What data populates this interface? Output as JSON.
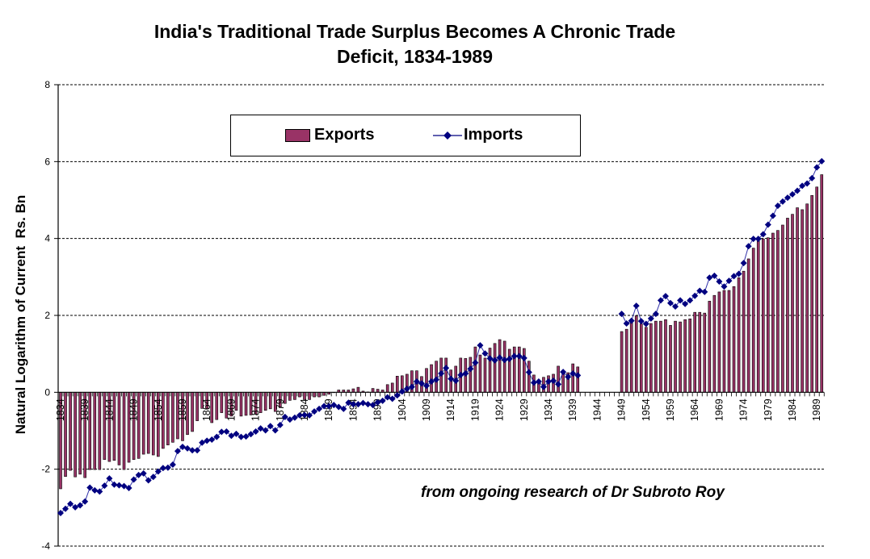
{
  "chart_data": {
    "type": "bar+line",
    "title": "India's Traditional Trade Surplus Becomes A Chronic Trade Deficit, 1834-1989",
    "title_lines": [
      "India's Traditional Trade Surplus Becomes A Chronic Trade",
      "Deficit, 1834-1989"
    ],
    "xlabel": "",
    "ylabel": "Natural Logarithm of Current  Rs. Bn",
    "ylim": [
      -4,
      8
    ],
    "yticks": [
      -4,
      -2,
      0,
      2,
      4,
      6,
      8
    ],
    "xlim": [
      1834,
      1990
    ],
    "xtick_labels": [
      "1834",
      "1839",
      "1844",
      "1849",
      "1854",
      "1859",
      "1864",
      "1869",
      "1874",
      "1879",
      "1884",
      "1889",
      "1894",
      "1899",
      "1904",
      "1909",
      "1914",
      "1919",
      "1924",
      "1929",
      "1934",
      "1939",
      "1944",
      "1949",
      "1954",
      "1959",
      "1964",
      "1969",
      "1974",
      "1979",
      "1984",
      "1989"
    ],
    "grid": "horizontal dashed",
    "legend_position": "top-center",
    "annotation": "from ongoing research of Dr Subroto Roy",
    "year_start": 1834,
    "series": [
      {
        "name": "Exports",
        "type": "bar",
        "color": "#993366",
        "values": [
          -2.51,
          -2.19,
          -2.03,
          -2.2,
          -2.13,
          -2.22,
          -2.01,
          -2.01,
          -2.01,
          -1.75,
          -1.8,
          -1.77,
          -1.89,
          -2.01,
          -1.82,
          -1.75,
          -1.72,
          -1.61,
          -1.59,
          -1.63,
          -1.67,
          -1.46,
          -1.37,
          -1.3,
          -1.21,
          -1.26,
          -1.1,
          -1.02,
          -0.74,
          -0.42,
          -0.43,
          -0.79,
          -0.71,
          -0.53,
          -0.67,
          -0.62,
          -0.47,
          -0.62,
          -0.6,
          -0.59,
          -0.57,
          -0.53,
          -0.47,
          -0.43,
          -0.5,
          -0.4,
          -0.29,
          -0.21,
          -0.19,
          -0.12,
          -0.19,
          -0.19,
          -0.12,
          -0.12,
          -0.08,
          -0.05,
          -0.01,
          0.06,
          0.06,
          0.06,
          0.09,
          0.13,
          0.03,
          0.01,
          0.1,
          0.08,
          0.06,
          0.2,
          0.24,
          0.42,
          0.43,
          0.47,
          0.56,
          0.56,
          0.41,
          0.62,
          0.72,
          0.81,
          0.89,
          0.89,
          0.58,
          0.68,
          0.89,
          0.88,
          0.91,
          1.18,
          0.97,
          0.89,
          1.15,
          1.27,
          1.37,
          1.33,
          1.12,
          1.18,
          1.18,
          1.14,
          0.81,
          0.45,
          0.31,
          0.39,
          0.43,
          0.47,
          0.68,
          0.56,
          0.51,
          0.74,
          0.66,
          null,
          null,
          null,
          null,
          null,
          null,
          null,
          null,
          1.58,
          1.64,
          1.81,
          1.99,
          1.78,
          1.69,
          1.79,
          1.85,
          1.85,
          1.89,
          1.74,
          1.85,
          1.83,
          1.89,
          1.91,
          2.08,
          2.08,
          2.06,
          2.37,
          2.52,
          2.61,
          2.65,
          2.65,
          2.75,
          2.98,
          3.15,
          3.47,
          3.75,
          3.93,
          3.99,
          4.02,
          4.14,
          4.21,
          4.35,
          4.53,
          4.63,
          4.8,
          4.75,
          4.9,
          5.12,
          5.34,
          5.66
        ]
      },
      {
        "name": "Imports",
        "type": "line",
        "marker": "diamond",
        "color": "#000080",
        "values": [
          -3.14,
          -3.03,
          -2.9,
          -2.99,
          -2.94,
          -2.84,
          -2.48,
          -2.55,
          -2.58,
          -2.43,
          -2.24,
          -2.4,
          -2.42,
          -2.44,
          -2.49,
          -2.27,
          -2.15,
          -2.11,
          -2.29,
          -2.2,
          -2.06,
          -1.97,
          -1.96,
          -1.88,
          -1.53,
          -1.42,
          -1.46,
          -1.51,
          -1.51,
          -1.31,
          -1.26,
          -1.23,
          -1.16,
          -1.03,
          -1.02,
          -1.13,
          -1.08,
          -1.16,
          -1.15,
          -1.09,
          -1.02,
          -0.94,
          -0.99,
          -0.88,
          -0.99,
          -0.85,
          -0.64,
          -0.71,
          -0.66,
          -0.6,
          -0.59,
          -0.6,
          -0.5,
          -0.43,
          -0.36,
          -0.36,
          -0.33,
          -0.38,
          -0.43,
          -0.27,
          -0.31,
          -0.31,
          -0.28,
          -0.31,
          -0.33,
          -0.26,
          -0.22,
          -0.13,
          -0.17,
          -0.08,
          0.02,
          0.09,
          0.14,
          0.28,
          0.23,
          0.17,
          0.28,
          0.33,
          0.49,
          0.63,
          0.35,
          0.3,
          0.45,
          0.49,
          0.61,
          0.77,
          1.22,
          1.01,
          0.88,
          0.83,
          0.9,
          0.84,
          0.87,
          0.94,
          0.94,
          0.89,
          0.52,
          0.25,
          0.28,
          0.14,
          0.28,
          0.3,
          0.21,
          0.53,
          0.4,
          0.49,
          0.44,
          null,
          null,
          null,
          null,
          null,
          null,
          null,
          null,
          2.04,
          1.79,
          1.86,
          2.25,
          1.85,
          1.78,
          1.92,
          2.04,
          2.39,
          2.5,
          2.32,
          2.23,
          2.39,
          2.3,
          2.39,
          2.51,
          2.64,
          2.61,
          2.98,
          3.03,
          2.88,
          2.75,
          2.9,
          3.02,
          3.08,
          3.36,
          3.8,
          3.99,
          3.99,
          4.11,
          4.36,
          4.59,
          4.85,
          4.96,
          5.06,
          5.15,
          5.24,
          5.37,
          5.43,
          5.57,
          5.85,
          6.01
        ]
      }
    ]
  }
}
